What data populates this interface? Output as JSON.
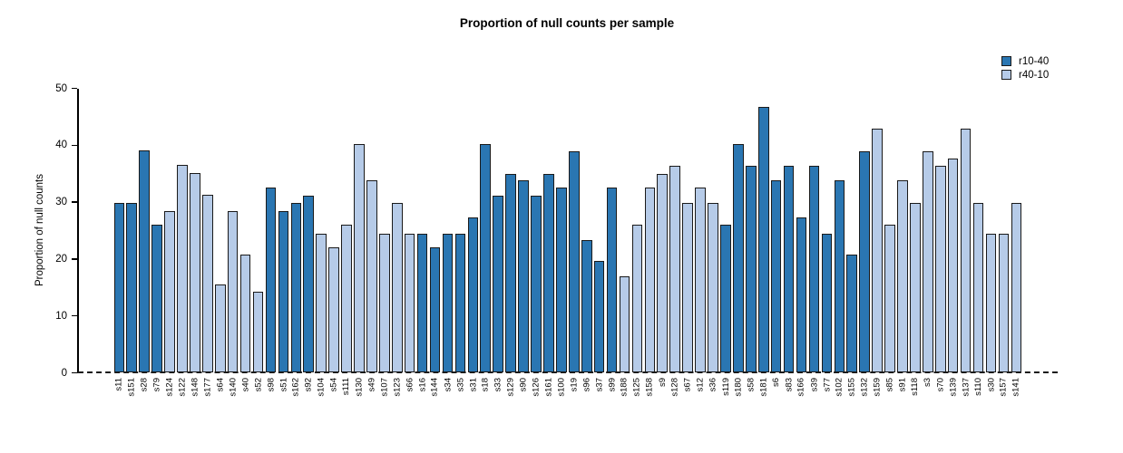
{
  "chart_data": {
    "type": "bar",
    "title": "Proportion of null counts per sample",
    "ylabel": "Proportion of null counts",
    "xlabel": "",
    "ylim": [
      0,
      50
    ],
    "yticks": [
      0,
      10,
      20,
      30,
      40,
      50
    ],
    "grid": false,
    "legend_position": "top-right",
    "zero_line_style": "dashed",
    "series": [
      {
        "name": "r10-40",
        "color": "#2A76B2"
      },
      {
        "name": "r40-10",
        "color": "#B6CBE8"
      }
    ],
    "bars": [
      {
        "label": "s11",
        "value": 29.8,
        "series": "r10-40"
      },
      {
        "label": "s151",
        "value": 29.8,
        "series": "r10-40"
      },
      {
        "label": "s28",
        "value": 39.1,
        "series": "r10-40"
      },
      {
        "label": "s79",
        "value": 26.0,
        "series": "r10-40"
      },
      {
        "label": "s124",
        "value": 28.5,
        "series": "r40-10"
      },
      {
        "label": "s122",
        "value": 36.5,
        "series": "r40-10"
      },
      {
        "label": "s148",
        "value": 35.1,
        "series": "r40-10"
      },
      {
        "label": "s177",
        "value": 31.3,
        "series": "r40-10"
      },
      {
        "label": "s64",
        "value": 15.6,
        "series": "r40-10"
      },
      {
        "label": "s140",
        "value": 28.5,
        "series": "r40-10"
      },
      {
        "label": "s40",
        "value": 20.8,
        "series": "r40-10"
      },
      {
        "label": "s52",
        "value": 14.3,
        "series": "r40-10"
      },
      {
        "label": "s98",
        "value": 32.5,
        "series": "r10-40"
      },
      {
        "label": "s51",
        "value": 28.5,
        "series": "r10-40"
      },
      {
        "label": "s162",
        "value": 29.8,
        "series": "r10-40"
      },
      {
        "label": "s92",
        "value": 31.2,
        "series": "r10-40"
      },
      {
        "label": "s104",
        "value": 24.5,
        "series": "r40-10"
      },
      {
        "label": "s54",
        "value": 22.1,
        "series": "r40-10"
      },
      {
        "label": "s111",
        "value": 26.0,
        "series": "r40-10"
      },
      {
        "label": "s130",
        "value": 40.2,
        "series": "r40-10"
      },
      {
        "label": "s49",
        "value": 33.8,
        "series": "r40-10"
      },
      {
        "label": "s107",
        "value": 24.5,
        "series": "r40-10"
      },
      {
        "label": "s123",
        "value": 29.8,
        "series": "r40-10"
      },
      {
        "label": "s66",
        "value": 24.5,
        "series": "r40-10"
      },
      {
        "label": "s16",
        "value": 24.5,
        "series": "r10-40"
      },
      {
        "label": "s144",
        "value": 22.1,
        "series": "r10-40"
      },
      {
        "label": "s34",
        "value": 24.5,
        "series": "r10-40"
      },
      {
        "label": "s35",
        "value": 24.5,
        "series": "r10-40"
      },
      {
        "label": "s31",
        "value": 27.3,
        "series": "r10-40"
      },
      {
        "label": "s18",
        "value": 40.2,
        "series": "r10-40"
      },
      {
        "label": "s33",
        "value": 31.2,
        "series": "r10-40"
      },
      {
        "label": "s129",
        "value": 35.0,
        "series": "r10-40"
      },
      {
        "label": "s90",
        "value": 33.8,
        "series": "r10-40"
      },
      {
        "label": "s126",
        "value": 31.2,
        "series": "r10-40"
      },
      {
        "label": "s161",
        "value": 35.0,
        "series": "r10-40"
      },
      {
        "label": "s100",
        "value": 32.5,
        "series": "r10-40"
      },
      {
        "label": "s19",
        "value": 39.0,
        "series": "r10-40"
      },
      {
        "label": "s96",
        "value": 23.4,
        "series": "r10-40"
      },
      {
        "label": "s37",
        "value": 19.6,
        "series": "r10-40"
      },
      {
        "label": "s99",
        "value": 32.5,
        "series": "r10-40"
      },
      {
        "label": "s188",
        "value": 16.9,
        "series": "r40-10"
      },
      {
        "label": "s125",
        "value": 26.0,
        "series": "r40-10"
      },
      {
        "label": "s158",
        "value": 32.5,
        "series": "r40-10"
      },
      {
        "label": "s9",
        "value": 35.0,
        "series": "r40-10"
      },
      {
        "label": "s128",
        "value": 36.4,
        "series": "r40-10"
      },
      {
        "label": "s67",
        "value": 29.8,
        "series": "r40-10"
      },
      {
        "label": "s12",
        "value": 32.5,
        "series": "r40-10"
      },
      {
        "label": "s36",
        "value": 29.8,
        "series": "r40-10"
      },
      {
        "label": "s119",
        "value": 26.0,
        "series": "r10-40"
      },
      {
        "label": "s180",
        "value": 40.2,
        "series": "r10-40"
      },
      {
        "label": "s58",
        "value": 36.4,
        "series": "r10-40"
      },
      {
        "label": "s181",
        "value": 46.8,
        "series": "r10-40"
      },
      {
        "label": "s6",
        "value": 33.8,
        "series": "r10-40"
      },
      {
        "label": "s83",
        "value": 36.4,
        "series": "r10-40"
      },
      {
        "label": "s166",
        "value": 27.3,
        "series": "r10-40"
      },
      {
        "label": "s39",
        "value": 36.4,
        "series": "r10-40"
      },
      {
        "label": "s77",
        "value": 24.5,
        "series": "r10-40"
      },
      {
        "label": "s102",
        "value": 33.8,
        "series": "r10-40"
      },
      {
        "label": "s155",
        "value": 20.8,
        "series": "r10-40"
      },
      {
        "label": "s132",
        "value": 39.0,
        "series": "r10-40"
      },
      {
        "label": "s159",
        "value": 42.9,
        "series": "r40-10"
      },
      {
        "label": "s85",
        "value": 26.0,
        "series": "r40-10"
      },
      {
        "label": "s91",
        "value": 33.8,
        "series": "r40-10"
      },
      {
        "label": "s118",
        "value": 29.8,
        "series": "r40-10"
      },
      {
        "label": "s3",
        "value": 39.0,
        "series": "r40-10"
      },
      {
        "label": "s70",
        "value": 36.4,
        "series": "r40-10"
      },
      {
        "label": "s139",
        "value": 37.7,
        "series": "r40-10"
      },
      {
        "label": "s137",
        "value": 42.9,
        "series": "r40-10"
      },
      {
        "label": "s110",
        "value": 29.8,
        "series": "r40-10"
      },
      {
        "label": "s30",
        "value": 24.5,
        "series": "r40-10"
      },
      {
        "label": "s157",
        "value": 24.5,
        "series": "r40-10"
      },
      {
        "label": "s141",
        "value": 29.8,
        "series": "r40-10"
      }
    ]
  }
}
